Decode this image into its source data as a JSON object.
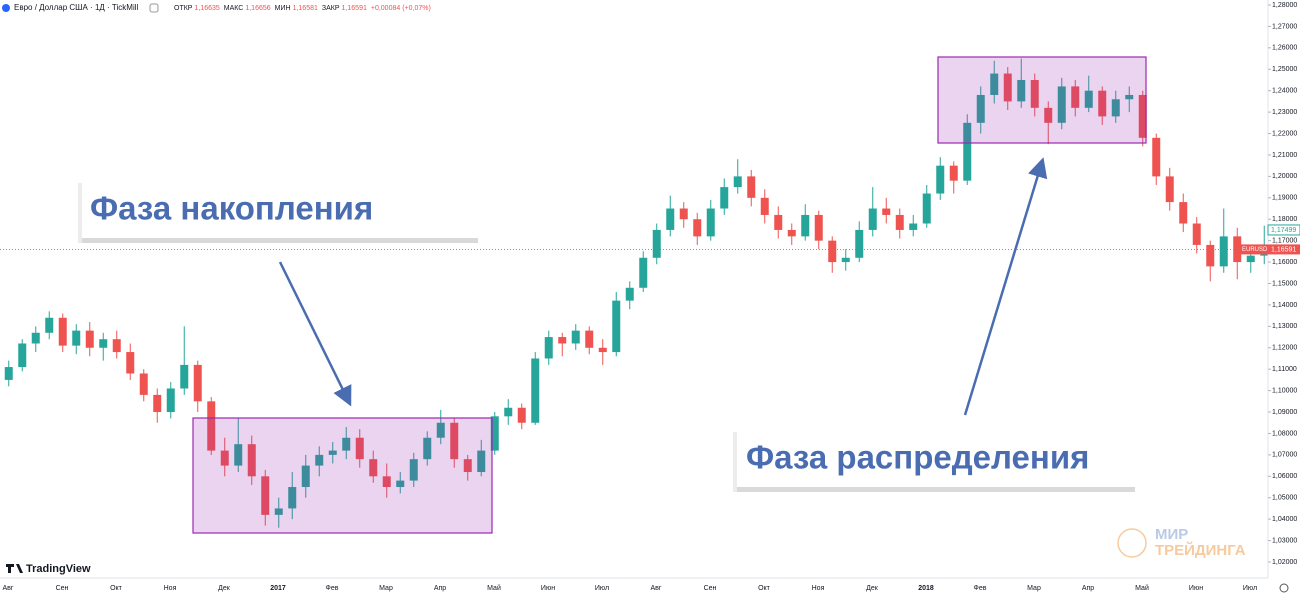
{
  "header": {
    "title": "Евро / Доллар США · 1Д · TickMill",
    "ohlc": [
      {
        "label": "ОТКР",
        "value": "1,16635"
      },
      {
        "label": "МАКС",
        "value": "1,16656"
      },
      {
        "label": "МИН",
        "value": "1,16581"
      },
      {
        "label": "ЗАКР",
        "value": "1,16591"
      }
    ],
    "change": "+0,00084 (+0,07%)"
  },
  "annotations": {
    "accumulation": "Фаза накопления",
    "distribution": "Фаза распределения"
  },
  "branding": {
    "platform": "TradingView",
    "watermark_top": "МИР",
    "watermark_bottom": "ТРЕЙДИНГА"
  },
  "chart_data": {
    "type": "candlestick",
    "up_color": "#26a69a",
    "down_color": "#ef5350",
    "months": [
      "Авг",
      "Сен",
      "Окт",
      "Ноя",
      "Дек",
      "2017",
      "Фев",
      "Мар",
      "Апр",
      "Май",
      "Июн",
      "Июл",
      "Авг",
      "Сен",
      "Окт",
      "Ноя",
      "Дек",
      "2018",
      "Фев",
      "Мар",
      "Апр",
      "Май",
      "Июн",
      "Июл"
    ],
    "ylim": [
      1.02,
      1.28
    ],
    "yticks": [
      {
        "value": 1.28,
        "label": "1,28000"
      },
      {
        "value": 1.27,
        "label": "1,27000"
      },
      {
        "value": 1.26,
        "label": "1,26000"
      },
      {
        "value": 1.25,
        "label": "1,25000"
      },
      {
        "value": 1.24,
        "label": "1,24000"
      },
      {
        "value": 1.23,
        "label": "1,23000"
      },
      {
        "value": 1.22,
        "label": "1,22000"
      },
      {
        "value": 1.21,
        "label": "1,21000"
      },
      {
        "value": 1.2,
        "label": "1,20000"
      },
      {
        "value": 1.19,
        "label": "1,19000"
      },
      {
        "value": 1.18,
        "label": "1,18000"
      },
      {
        "value": 1.17,
        "label": "1,17000"
      },
      {
        "value": 1.16,
        "label": "1,16000"
      },
      {
        "value": 1.15,
        "label": "1,15000"
      },
      {
        "value": 1.14,
        "label": "1,14000"
      },
      {
        "value": 1.13,
        "label": "1,13000"
      },
      {
        "value": 1.12,
        "label": "1,12000"
      },
      {
        "value": 1.11,
        "label": "1,11000"
      },
      {
        "value": 1.1,
        "label": "1,10000"
      },
      {
        "value": 1.09,
        "label": "1,09000"
      },
      {
        "value": 1.08,
        "label": "1,08000"
      },
      {
        "value": 1.07,
        "label": "1,07000"
      },
      {
        "value": 1.06,
        "label": "1,06000"
      },
      {
        "value": 1.05,
        "label": "1,05000"
      },
      {
        "value": 1.04,
        "label": "1,04000"
      },
      {
        "value": 1.03,
        "label": "1,03000"
      },
      {
        "value": 1.02,
        "label": "1,02000"
      }
    ],
    "last_price": {
      "value": 1.16591,
      "label": "1,16591",
      "symbol": "EURUSD"
    },
    "ask_price": {
      "value": 1.17499,
      "label": "1,17499"
    },
    "ohlc": [
      [
        1.105,
        1.114,
        1.102,
        1.111
      ],
      [
        1.111,
        1.124,
        1.109,
        1.122
      ],
      [
        1.122,
        1.13,
        1.118,
        1.127
      ],
      [
        1.127,
        1.137,
        1.124,
        1.134
      ],
      [
        1.134,
        1.136,
        1.118,
        1.121
      ],
      [
        1.121,
        1.131,
        1.117,
        1.128
      ],
      [
        1.128,
        1.132,
        1.116,
        1.12
      ],
      [
        1.12,
        1.127,
        1.114,
        1.124
      ],
      [
        1.124,
        1.128,
        1.115,
        1.118
      ],
      [
        1.118,
        1.122,
        1.105,
        1.108
      ],
      [
        1.108,
        1.11,
        1.095,
        1.098
      ],
      [
        1.098,
        1.101,
        1.085,
        1.09
      ],
      [
        1.09,
        1.104,
        1.087,
        1.101
      ],
      [
        1.101,
        1.13,
        1.098,
        1.112
      ],
      [
        1.112,
        1.114,
        1.09,
        1.095
      ],
      [
        1.095,
        1.097,
        1.07,
        1.072
      ],
      [
        1.072,
        1.078,
        1.06,
        1.065
      ],
      [
        1.065,
        1.087,
        1.062,
        1.075
      ],
      [
        1.075,
        1.079,
        1.056,
        1.06
      ],
      [
        1.06,
        1.063,
        1.037,
        1.042
      ],
      [
        1.042,
        1.05,
        1.036,
        1.045
      ],
      [
        1.045,
        1.062,
        1.04,
        1.055
      ],
      [
        1.055,
        1.07,
        1.05,
        1.065
      ],
      [
        1.065,
        1.074,
        1.06,
        1.07
      ],
      [
        1.07,
        1.076,
        1.066,
        1.072
      ],
      [
        1.072,
        1.083,
        1.068,
        1.078
      ],
      [
        1.078,
        1.082,
        1.064,
        1.068
      ],
      [
        1.068,
        1.072,
        1.057,
        1.06
      ],
      [
        1.06,
        1.066,
        1.05,
        1.055
      ],
      [
        1.055,
        1.062,
        1.052,
        1.058
      ],
      [
        1.058,
        1.071,
        1.055,
        1.068
      ],
      [
        1.068,
        1.081,
        1.065,
        1.078
      ],
      [
        1.078,
        1.091,
        1.075,
        1.085
      ],
      [
        1.085,
        1.087,
        1.064,
        1.068
      ],
      [
        1.068,
        1.07,
        1.058,
        1.062
      ],
      [
        1.062,
        1.077,
        1.06,
        1.072
      ],
      [
        1.072,
        1.09,
        1.07,
        1.088
      ],
      [
        1.088,
        1.096,
        1.084,
        1.092
      ],
      [
        1.092,
        1.094,
        1.082,
        1.085
      ],
      [
        1.085,
        1.118,
        1.084,
        1.115
      ],
      [
        1.115,
        1.128,
        1.112,
        1.125
      ],
      [
        1.125,
        1.127,
        1.116,
        1.122
      ],
      [
        1.122,
        1.131,
        1.119,
        1.128
      ],
      [
        1.128,
        1.13,
        1.117,
        1.12
      ],
      [
        1.12,
        1.124,
        1.112,
        1.118
      ],
      [
        1.118,
        1.146,
        1.116,
        1.142
      ],
      [
        1.142,
        1.151,
        1.138,
        1.148
      ],
      [
        1.148,
        1.165,
        1.146,
        1.162
      ],
      [
        1.162,
        1.178,
        1.159,
        1.175
      ],
      [
        1.175,
        1.191,
        1.172,
        1.185
      ],
      [
        1.185,
        1.188,
        1.176,
        1.18
      ],
      [
        1.18,
        1.183,
        1.168,
        1.172
      ],
      [
        1.172,
        1.189,
        1.17,
        1.185
      ],
      [
        1.185,
        1.199,
        1.182,
        1.195
      ],
      [
        1.195,
        1.208,
        1.192,
        1.2
      ],
      [
        1.2,
        1.203,
        1.186,
        1.19
      ],
      [
        1.19,
        1.194,
        1.178,
        1.182
      ],
      [
        1.182,
        1.186,
        1.171,
        1.175
      ],
      [
        1.175,
        1.178,
        1.168,
        1.172
      ],
      [
        1.172,
        1.187,
        1.17,
        1.182
      ],
      [
        1.182,
        1.184,
        1.166,
        1.17
      ],
      [
        1.17,
        1.172,
        1.155,
        1.16
      ],
      [
        1.16,
        1.166,
        1.156,
        1.162
      ],
      [
        1.162,
        1.179,
        1.16,
        1.175
      ],
      [
        1.175,
        1.195,
        1.172,
        1.185
      ],
      [
        1.185,
        1.19,
        1.178,
        1.182
      ],
      [
        1.182,
        1.185,
        1.171,
        1.175
      ],
      [
        1.175,
        1.182,
        1.172,
        1.178
      ],
      [
        1.178,
        1.196,
        1.176,
        1.192
      ],
      [
        1.192,
        1.209,
        1.189,
        1.205
      ],
      [
        1.205,
        1.207,
        1.192,
        1.198
      ],
      [
        1.198,
        1.229,
        1.196,
        1.225
      ],
      [
        1.225,
        1.242,
        1.22,
        1.238
      ],
      [
        1.238,
        1.254,
        1.234,
        1.248
      ],
      [
        1.248,
        1.251,
        1.231,
        1.235
      ],
      [
        1.235,
        1.255,
        1.232,
        1.245
      ],
      [
        1.245,
        1.248,
        1.228,
        1.232
      ],
      [
        1.232,
        1.235,
        1.215,
        1.225
      ],
      [
        1.225,
        1.246,
        1.222,
        1.242
      ],
      [
        1.242,
        1.245,
        1.228,
        1.232
      ],
      [
        1.232,
        1.247,
        1.23,
        1.24
      ],
      [
        1.24,
        1.242,
        1.224,
        1.228
      ],
      [
        1.228,
        1.24,
        1.225,
        1.236
      ],
      [
        1.236,
        1.242,
        1.23,
        1.238
      ],
      [
        1.238,
        1.24,
        1.214,
        1.218
      ],
      [
        1.218,
        1.22,
        1.196,
        1.2
      ],
      [
        1.2,
        1.204,
        1.184,
        1.188
      ],
      [
        1.188,
        1.192,
        1.174,
        1.178
      ],
      [
        1.178,
        1.181,
        1.164,
        1.168
      ],
      [
        1.168,
        1.17,
        1.151,
        1.158
      ],
      [
        1.158,
        1.185,
        1.155,
        1.172
      ],
      [
        1.172,
        1.176,
        1.152,
        1.16
      ],
      [
        1.16,
        1.168,
        1.155,
        1.163
      ],
      [
        1.163,
        1.177,
        1.159,
        1.166
      ]
    ]
  }
}
